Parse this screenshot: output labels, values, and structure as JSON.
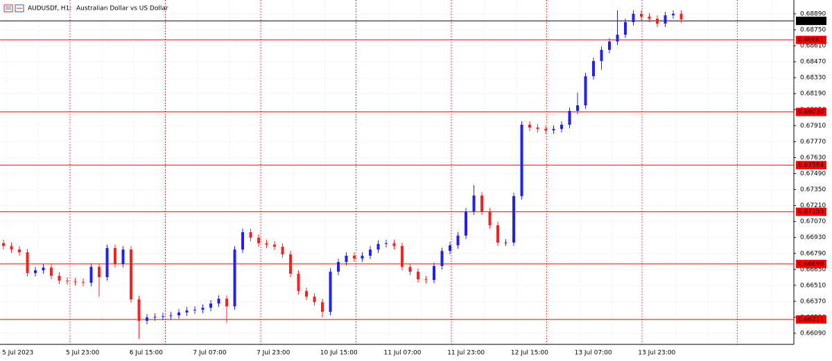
{
  "chart_data": {
    "type": "candlestick",
    "symbol": "AUDUSDf, H1:",
    "description": "Australian Dollar vs US Dollar",
    "up_color": "#1f1fff",
    "down_color": "#ff1f1f",
    "ylim": [
      0.65993,
      0.69011
    ],
    "yticks": [
      {
        "value": 0.6609,
        "label": "0.66090"
      },
      {
        "value": 0.6623,
        "label": "0.66230"
      },
      {
        "value": 0.6637,
        "label": "0.66370"
      },
      {
        "value": 0.6651,
        "label": "0.66510"
      },
      {
        "value": 0.6665,
        "label": "0.66650"
      },
      {
        "value": 0.6679,
        "label": "0.66790"
      },
      {
        "value": 0.6693,
        "label": "0.66930"
      },
      {
        "value": 0.6707,
        "label": "0.67070"
      },
      {
        "value": 0.6721,
        "label": "0.67210"
      },
      {
        "value": 0.6735,
        "label": "0.67350"
      },
      {
        "value": 0.6749,
        "label": "0.67490"
      },
      {
        "value": 0.6763,
        "label": "0.67630"
      },
      {
        "value": 0.6777,
        "label": "0.67770"
      },
      {
        "value": 0.6791,
        "label": "0.67910"
      },
      {
        "value": 0.6805,
        "label": "0.68050"
      },
      {
        "value": 0.6819,
        "label": "0.68190"
      },
      {
        "value": 0.6833,
        "label": "0.68330"
      },
      {
        "value": 0.6847,
        "label": "0.68470"
      },
      {
        "value": 0.6861,
        "label": "0.68610"
      },
      {
        "value": 0.6875,
        "label": "0.68750"
      },
      {
        "value": 0.6889,
        "label": "0.68890"
      }
    ],
    "xticks": [
      "5 Jul 2023",
      "5 Jul 23:00",
      "6 Jul 15:00",
      "7 Jul 07:00",
      "7 Jul 23:00",
      "10 Jul 15:00",
      "11 Jul 07:00",
      "11 Jul 23:00",
      "12 Jul 15:00",
      "13 Jul 07:00",
      "13 Jul 23:00"
    ],
    "levels": [
      {
        "value": 0.68661,
        "color": "#ff0000"
      },
      {
        "value": {
          "value": 0.6803,
          "label": "0.68030"
        },
        "color": "#ff0000"
      },
      {
        "value": 0.67564,
        "color": "#ff0000"
      },
      {
        "value": 0.67155,
        "color": "#ff0000"
      },
      {
        "value": 0.66698,
        "color": "#ff0000"
      },
      {
        "value": 0.66211,
        "color": "#ff0000"
      }
    ],
    "current_price": 0.68828,
    "ohlc": [
      [
        0.6688,
        0.6691,
        0.66825,
        0.66855
      ],
      [
        0.66855,
        0.66885,
        0.66794,
        0.66824
      ],
      [
        0.66824,
        0.66854,
        0.6677,
        0.668
      ],
      [
        0.668,
        0.6683,
        0.66588,
        0.66618
      ],
      [
        0.66618,
        0.66672,
        0.66588,
        0.66642
      ],
      [
        0.66642,
        0.66696,
        0.66612,
        0.66666
      ],
      [
        0.66666,
        0.66696,
        0.66564,
        0.66594
      ],
      [
        0.66594,
        0.66624,
        0.66521,
        0.66551
      ],
      [
        0.66551,
        0.66581,
        0.66515,
        0.66545
      ],
      [
        0.66545,
        0.66575,
        0.66509,
        0.66539
      ],
      [
        0.66539,
        0.66569,
        0.66503,
        0.66533
      ],
      [
        0.66533,
        0.66702,
        0.66503,
        0.66672
      ],
      [
        0.66672,
        0.66702,
        0.6641,
        0.66582
      ],
      [
        0.66582,
        0.66867,
        0.66552,
        0.66837
      ],
      [
        0.66837,
        0.66867,
        0.66667,
        0.66697
      ],
      [
        0.66697,
        0.66854,
        0.66667,
        0.66824
      ],
      [
        0.66824,
        0.66854,
        0.66357,
        0.66387
      ],
      [
        0.66387,
        0.66417,
        0.6604,
        0.66199
      ],
      [
        0.66199,
        0.66259,
        0.66169,
        0.66229
      ],
      [
        0.66229,
        0.66265,
        0.66199,
        0.66235
      ],
      [
        0.66235,
        0.66271,
        0.66205,
        0.66241
      ],
      [
        0.66241,
        0.66277,
        0.66211,
        0.66247
      ],
      [
        0.66247,
        0.66302,
        0.66217,
        0.66272
      ],
      [
        0.66272,
        0.6632,
        0.66242,
        0.6629
      ],
      [
        0.6629,
        0.66326,
        0.6626,
        0.66296
      ],
      [
        0.66296,
        0.66344,
        0.66266,
        0.66314
      ],
      [
        0.66314,
        0.66381,
        0.66284,
        0.66351
      ],
      [
        0.66351,
        0.66423,
        0.66321,
        0.66393
      ],
      [
        0.66393,
        0.66423,
        0.6618,
        0.66326
      ],
      [
        0.66326,
        0.66854,
        0.66296,
        0.66824
      ],
      [
        0.66824,
        0.67006,
        0.66794,
        0.66976
      ],
      [
        0.66976,
        0.67006,
        0.66898,
        0.66928
      ],
      [
        0.66928,
        0.66958,
        0.66849,
        0.66879
      ],
      [
        0.66879,
        0.66909,
        0.66837,
        0.66867
      ],
      [
        0.66867,
        0.66897,
        0.66819,
        0.66849
      ],
      [
        0.66849,
        0.66879,
        0.66752,
        0.66782
      ],
      [
        0.66782,
        0.66812,
        0.66582,
        0.66612
      ],
      [
        0.66612,
        0.66642,
        0.6643,
        0.6646
      ],
      [
        0.6646,
        0.6649,
        0.66381,
        0.66411
      ],
      [
        0.66411,
        0.66441,
        0.66333,
        0.66363
      ],
      [
        0.66363,
        0.66393,
        0.6623,
        0.66278
      ],
      [
        0.66278,
        0.6666,
        0.66248,
        0.6663
      ],
      [
        0.6663,
        0.66745,
        0.666,
        0.66715
      ],
      [
        0.66715,
        0.668,
        0.66685,
        0.6677
      ],
      [
        0.6677,
        0.668,
        0.66715,
        0.66745
      ],
      [
        0.66745,
        0.668,
        0.66715,
        0.6677
      ],
      [
        0.6677,
        0.66854,
        0.6674,
        0.66824
      ],
      [
        0.66824,
        0.66903,
        0.66794,
        0.66873
      ],
      [
        0.66873,
        0.66909,
        0.66843,
        0.66879
      ],
      [
        0.66879,
        0.66909,
        0.66825,
        0.66855
      ],
      [
        0.66855,
        0.66885,
        0.66642,
        0.66672
      ],
      [
        0.66672,
        0.66702,
        0.666,
        0.6663
      ],
      [
        0.6663,
        0.6666,
        0.66533,
        0.66563
      ],
      [
        0.66563,
        0.66593,
        0.66527,
        0.66557
      ],
      [
        0.66557,
        0.66709,
        0.66527,
        0.66679
      ],
      [
        0.66679,
        0.66842,
        0.66649,
        0.66812
      ],
      [
        0.66812,
        0.66891,
        0.66782,
        0.66861
      ],
      [
        0.66861,
        0.66976,
        0.66831,
        0.66946
      ],
      [
        0.66946,
        0.67188,
        0.66916,
        0.67158
      ],
      [
        0.67158,
        0.6739,
        0.67128,
        0.67298
      ],
      [
        0.67298,
        0.67328,
        0.67128,
        0.67158
      ],
      [
        0.67158,
        0.67188,
        0.67007,
        0.67037
      ],
      [
        0.67037,
        0.67067,
        0.66855,
        0.66885
      ],
      [
        0.66885,
        0.66915,
        0.66855,
        0.66885
      ],
      [
        0.66885,
        0.67322,
        0.66855,
        0.67292
      ],
      [
        0.67292,
        0.67948,
        0.67262,
        0.67918
      ],
      [
        0.67918,
        0.67948,
        0.67863,
        0.67893
      ],
      [
        0.67893,
        0.67923,
        0.67851,
        0.67881
      ],
      [
        0.67881,
        0.67911,
        0.67839,
        0.67869
      ],
      [
        0.67869,
        0.67911,
        0.67839,
        0.67881
      ],
      [
        0.67881,
        0.67948,
        0.67851,
        0.67918
      ],
      [
        0.67918,
        0.68069,
        0.67888,
        0.68039
      ],
      [
        0.68039,
        0.682,
        0.68009,
        0.68088
      ],
      [
        0.68088,
        0.68373,
        0.68058,
        0.68343
      ],
      [
        0.68343,
        0.68506,
        0.68313,
        0.68476
      ],
      [
        0.68476,
        0.68604,
        0.684,
        0.68574
      ],
      [
        0.68574,
        0.68677,
        0.68544,
        0.68647
      ],
      [
        0.68647,
        0.6892,
        0.68617,
        0.68707
      ],
      [
        0.68707,
        0.68847,
        0.68677,
        0.68817
      ],
      [
        0.68817,
        0.6892,
        0.68787,
        0.6889
      ],
      [
        0.6889,
        0.6892,
        0.68835,
        0.68865
      ],
      [
        0.68865,
        0.68895,
        0.68817,
        0.68847
      ],
      [
        0.68847,
        0.68877,
        0.68774,
        0.68804
      ],
      [
        0.68804,
        0.68907,
        0.68774,
        0.68877
      ],
      [
        0.68877,
        0.6892,
        0.68847,
        0.6889
      ],
      [
        0.6889,
        0.6892,
        0.68811,
        0.68841
      ]
    ]
  }
}
